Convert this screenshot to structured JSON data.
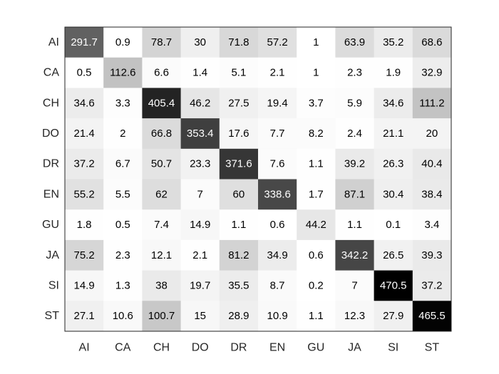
{
  "chart_data": {
    "type": "heatmap",
    "title": "",
    "xlabel": "",
    "ylabel": "",
    "x_categories": [
      "AI",
      "CA",
      "CH",
      "DO",
      "DR",
      "EN",
      "GU",
      "JA",
      "SI",
      "ST"
    ],
    "y_categories": [
      "AI",
      "CA",
      "CH",
      "DO",
      "DR",
      "EN",
      "GU",
      "JA",
      "SI",
      "ST"
    ],
    "values": [
      [
        291.7,
        0.9,
        78.7,
        30,
        71.8,
        57.2,
        1,
        63.9,
        35.2,
        68.6
      ],
      [
        0.5,
        112.6,
        6.6,
        1.4,
        5.1,
        2.1,
        1,
        2.3,
        1.9,
        32.9
      ],
      [
        34.6,
        3.3,
        405.4,
        46.2,
        27.5,
        19.4,
        3.7,
        5.9,
        34.6,
        111.2
      ],
      [
        21.4,
        2,
        66.8,
        353.4,
        17.6,
        7.7,
        8.2,
        2.4,
        21.1,
        20
      ],
      [
        37.2,
        6.7,
        50.7,
        23.3,
        371.6,
        7.6,
        1.1,
        39.2,
        26.3,
        40.4
      ],
      [
        55.2,
        5.5,
        62,
        7,
        60,
        338.6,
        1.7,
        87.1,
        30.4,
        38.4
      ],
      [
        1.8,
        0.5,
        7.4,
        14.9,
        1.1,
        0.6,
        44.2,
        1.1,
        0.1,
        3.4
      ],
      [
        75.2,
        2.3,
        12.1,
        2.1,
        81.2,
        34.9,
        0.6,
        342.2,
        26.5,
        39.3
      ],
      [
        14.9,
        1.3,
        38,
        19.7,
        35.5,
        8.7,
        0.2,
        7,
        470.5,
        37.2
      ],
      [
        27.1,
        10.6,
        100.7,
        15,
        28.9,
        10.9,
        1.1,
        12.3,
        27.9,
        465.5
      ]
    ],
    "colormap": "gray-reversed (white = low, black = high)",
    "cell_labels": true,
    "grid": false,
    "legend": "none"
  }
}
